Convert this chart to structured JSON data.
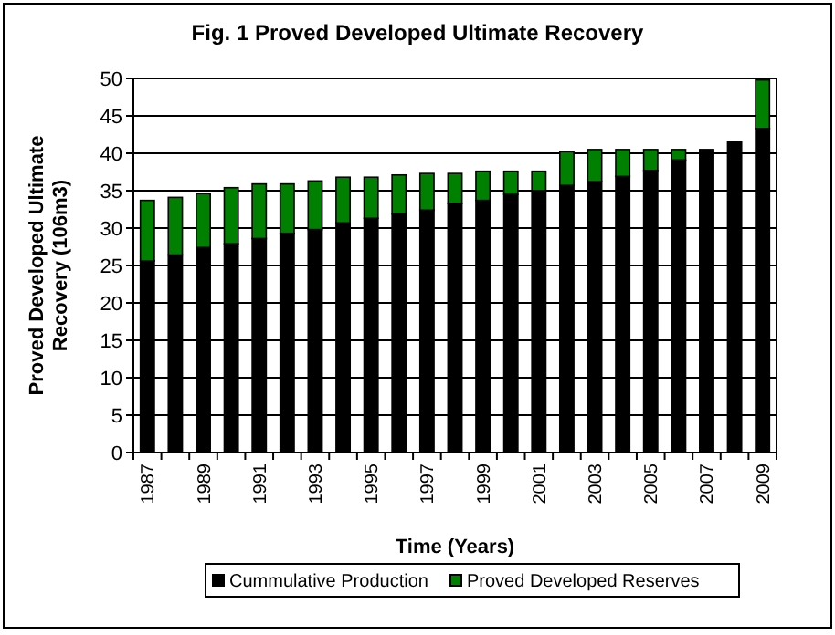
{
  "chart_data": {
    "type": "bar",
    "title": "Fig. 1 Proved Developed Ultimate Recovery",
    "xlabel": "Time (Years)",
    "ylabel": "Proved Developed Ultimate Recovery (106m3)",
    "categories": [
      "1987",
      null,
      "1989",
      null,
      "1991",
      null,
      "1993",
      null,
      "1995",
      null,
      "1997",
      null,
      "1999",
      null,
      "2001",
      null,
      "2003",
      null,
      "2005",
      null,
      "2007",
      null,
      "2009"
    ],
    "stacked": true,
    "series": [
      {
        "name": "Cummulative Production",
        "color": "#000000",
        "values": [
          25.6,
          26.4,
          27.4,
          27.9,
          28.6,
          29.3,
          29.8,
          30.7,
          31.3,
          31.9,
          32.4,
          33.3,
          33.7,
          34.5,
          35.0,
          35.7,
          36.2,
          36.9,
          37.7,
          39.1,
          40.5,
          41.5,
          43.3
        ]
      },
      {
        "name": "Proved Developed Reserves",
        "color": "#008000",
        "values": [
          8.1,
          7.7,
          7.2,
          7.5,
          7.3,
          6.6,
          6.5,
          6.1,
          5.5,
          5.2,
          4.9,
          4.0,
          3.9,
          3.1,
          2.6,
          4.5,
          4.3,
          3.6,
          2.8,
          1.4,
          0,
          0,
          6.5
        ]
      }
    ],
    "ylim": [
      0,
      50
    ],
    "yticks": [
      0,
      5,
      10,
      15,
      20,
      25,
      30,
      35,
      40,
      45,
      50
    ],
    "grid": "y",
    "legend": "bottom"
  }
}
